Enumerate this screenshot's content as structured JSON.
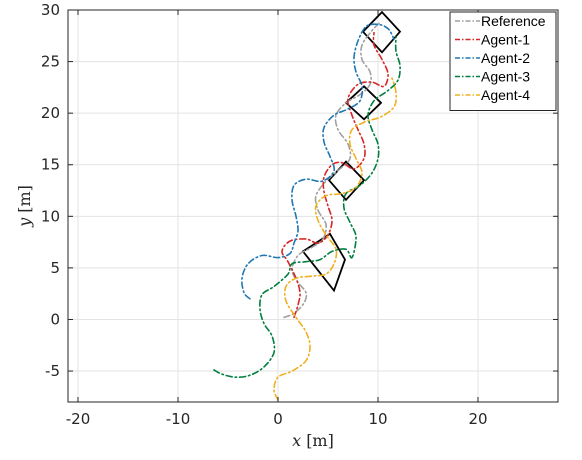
{
  "chart_data": {
    "type": "line",
    "title": "",
    "xlabel_var": "x",
    "xlabel_unit": "[m]",
    "ylabel_var": "y",
    "ylabel_unit": "[m]",
    "xlim": [
      -21,
      28
    ],
    "ylim": [
      -8,
      30
    ],
    "xticks": [
      -20,
      -10,
      0,
      10,
      20
    ],
    "xtick_labels": [
      "-20",
      "-10",
      "0",
      "10",
      "20"
    ],
    "yticks": [
      -5,
      0,
      5,
      10,
      15,
      20,
      25,
      30
    ],
    "ytick_labels": [
      "-5",
      "0",
      "5",
      "10",
      "15",
      "20",
      "25",
      "30"
    ],
    "grid": true,
    "legend_position": "top-right",
    "series": [
      {
        "name": "Reference",
        "color": "#a0a0a0",
        "dash": "dashdot",
        "points": [
          [
            0.6,
            0.2
          ],
          [
            1.6,
            0.6
          ],
          [
            2.6,
            1.6
          ],
          [
            2.8,
            2.6
          ],
          [
            2.0,
            3.6
          ],
          [
            1.4,
            4.8
          ],
          [
            2.0,
            6.2
          ],
          [
            3.4,
            7.0
          ],
          [
            4.5,
            7.8
          ],
          [
            4.8,
            9.2
          ],
          [
            4.0,
            10.6
          ],
          [
            3.8,
            12.0
          ],
          [
            4.8,
            13.4
          ],
          [
            6.2,
            14.6
          ],
          [
            7.2,
            15.6
          ],
          [
            7.0,
            17.0
          ],
          [
            6.0,
            18.4
          ],
          [
            5.8,
            19.8
          ],
          [
            6.8,
            21.0
          ],
          [
            8.2,
            21.8
          ],
          [
            9.2,
            22.8
          ],
          [
            9.2,
            24.0
          ],
          [
            8.4,
            25.2
          ],
          [
            8.4,
            26.6
          ],
          [
            9.4,
            28.0
          ],
          [
            10.2,
            28.8
          ]
        ]
      },
      {
        "name": "Agent-1",
        "color": "#d62728",
        "dash": "dashdot",
        "points": [
          [
            1.6,
            0.2
          ],
          [
            2.0,
            1.4
          ],
          [
            2.2,
            2.6
          ],
          [
            1.8,
            4.0
          ],
          [
            1.0,
            5.6
          ],
          [
            0.4,
            6.6
          ],
          [
            1.2,
            7.6
          ],
          [
            2.8,
            7.8
          ],
          [
            4.0,
            7.4
          ],
          [
            5.0,
            8.2
          ],
          [
            5.4,
            9.6
          ],
          [
            5.0,
            11.0
          ],
          [
            4.6,
            12.4
          ],
          [
            4.6,
            13.8
          ],
          [
            5.4,
            15.0
          ],
          [
            6.4,
            15.2
          ],
          [
            7.6,
            14.6
          ],
          [
            8.6,
            15.6
          ],
          [
            8.6,
            17.0
          ],
          [
            8.0,
            18.4
          ],
          [
            7.4,
            19.8
          ],
          [
            7.0,
            21.4
          ],
          [
            8.0,
            22.8
          ],
          [
            9.4,
            23.0
          ],
          [
            10.6,
            22.6
          ],
          [
            11.0,
            23.8
          ],
          [
            10.4,
            25.2
          ],
          [
            9.6,
            26.6
          ],
          [
            9.6,
            27.8
          ]
        ]
      },
      {
        "name": "Agent-2",
        "color": "#1f77b4",
        "dash": "dashdot",
        "points": [
          [
            -2.8,
            2.0
          ],
          [
            -3.4,
            2.6
          ],
          [
            -3.6,
            4.0
          ],
          [
            -3.0,
            5.4
          ],
          [
            -1.6,
            6.2
          ],
          [
            0.0,
            6.0
          ],
          [
            1.2,
            6.4
          ],
          [
            1.6,
            7.4
          ],
          [
            2.0,
            8.6
          ],
          [
            1.8,
            10.0
          ],
          [
            1.4,
            11.6
          ],
          [
            1.6,
            13.0
          ],
          [
            2.8,
            13.6
          ],
          [
            4.4,
            13.4
          ],
          [
            5.6,
            14.4
          ],
          [
            5.2,
            15.8
          ],
          [
            4.6,
            17.2
          ],
          [
            4.6,
            18.6
          ],
          [
            5.6,
            19.8
          ],
          [
            7.0,
            20.4
          ],
          [
            8.2,
            21.2
          ],
          [
            8.4,
            22.6
          ],
          [
            7.8,
            24.0
          ],
          [
            7.6,
            25.4
          ],
          [
            8.0,
            27.0
          ],
          [
            8.8,
            28.4
          ],
          [
            10.0,
            28.6
          ],
          [
            11.0,
            28.2
          ],
          [
            11.6,
            27.2
          ]
        ]
      },
      {
        "name": "Agent-3",
        "color": "#007f3f",
        "dash": "dashdot",
        "points": [
          [
            -6.4,
            -4.9
          ],
          [
            -5.6,
            -5.3
          ],
          [
            -4.2,
            -5.6
          ],
          [
            -2.8,
            -5.4
          ],
          [
            -1.4,
            -4.6
          ],
          [
            -0.4,
            -3.2
          ],
          [
            -0.6,
            -1.6
          ],
          [
            -1.4,
            -0.4
          ],
          [
            -1.8,
            1.0
          ],
          [
            -1.6,
            2.4
          ],
          [
            -0.4,
            3.2
          ],
          [
            1.0,
            4.4
          ],
          [
            1.4,
            5.4
          ],
          [
            2.8,
            5.6
          ],
          [
            4.2,
            5.8
          ],
          [
            5.4,
            6.6
          ],
          [
            6.8,
            6.8
          ],
          [
            7.4,
            6.0
          ],
          [
            7.8,
            8.0
          ],
          [
            7.2,
            9.4
          ],
          [
            6.6,
            10.8
          ],
          [
            6.8,
            12.2
          ],
          [
            8.2,
            13.0
          ],
          [
            9.4,
            14.2
          ],
          [
            10.0,
            15.6
          ],
          [
            10.0,
            17.0
          ],
          [
            9.4,
            18.4
          ],
          [
            9.0,
            19.8
          ],
          [
            9.6,
            21.2
          ],
          [
            11.0,
            22.2
          ],
          [
            12.0,
            23.2
          ],
          [
            12.2,
            24.6
          ],
          [
            11.8,
            26.0
          ],
          [
            11.8,
            27.4
          ]
        ]
      },
      {
        "name": "Agent-4",
        "color": "#f0b020",
        "dash": "dashdot",
        "points": [
          [
            0.0,
            -7.8
          ],
          [
            -0.4,
            -6.8
          ],
          [
            0.0,
            -5.6
          ],
          [
            1.4,
            -5.0
          ],
          [
            2.8,
            -4.0
          ],
          [
            3.2,
            -2.6
          ],
          [
            2.8,
            -1.2
          ],
          [
            1.8,
            0.2
          ],
          [
            0.8,
            1.8
          ],
          [
            0.8,
            3.2
          ],
          [
            1.8,
            4.0
          ],
          [
            3.4,
            4.2
          ],
          [
            4.8,
            4.4
          ],
          [
            5.6,
            5.4
          ],
          [
            5.8,
            6.8
          ],
          [
            4.8,
            8.2
          ],
          [
            4.0,
            9.6
          ],
          [
            3.8,
            11.0
          ],
          [
            4.8,
            12.0
          ],
          [
            6.4,
            12.2
          ],
          [
            7.8,
            12.8
          ],
          [
            8.4,
            14.2
          ],
          [
            7.8,
            15.6
          ],
          [
            7.2,
            17.0
          ],
          [
            7.4,
            18.4
          ],
          [
            8.8,
            19.2
          ],
          [
            10.2,
            19.6
          ],
          [
            11.6,
            20.6
          ],
          [
            11.8,
            22.0
          ],
          [
            11.4,
            23.4
          ]
        ]
      }
    ],
    "formation_shapes": [
      {
        "vertices": [
          [
            10.4,
            29.8
          ],
          [
            12.2,
            27.9
          ],
          [
            10.4,
            25.9
          ],
          [
            8.5,
            27.9
          ]
        ]
      },
      {
        "vertices": [
          [
            8.6,
            22.6
          ],
          [
            10.3,
            21.0
          ],
          [
            8.6,
            19.4
          ],
          [
            6.8,
            21.0
          ]
        ]
      },
      {
        "vertices": [
          [
            6.8,
            15.3
          ],
          [
            8.6,
            13.5
          ],
          [
            6.8,
            11.6
          ],
          [
            5.1,
            13.5
          ]
        ]
      },
      {
        "vertices": [
          [
            5.2,
            8.3
          ],
          [
            6.7,
            5.8
          ],
          [
            5.6,
            2.8
          ],
          [
            2.5,
            6.6
          ]
        ]
      }
    ]
  }
}
